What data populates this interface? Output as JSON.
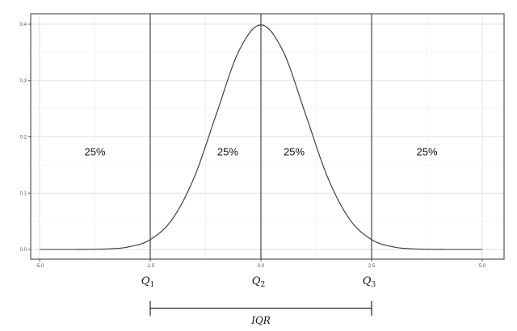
{
  "chart_data": {
    "type": "line",
    "title": "",
    "xlabel": "",
    "ylabel": "",
    "xlim": [
      -5.0,
      5.0
    ],
    "ylim": [
      0.0,
      0.4
    ],
    "x_ticks": [
      "-5.0",
      "-2.5",
      "0.0",
      "2.5",
      "5.0"
    ],
    "y_ticks": [
      "0.0",
      "0.1",
      "0.2",
      "0.3",
      "0.4"
    ],
    "grid": true,
    "curve": {
      "x": [
        -5.0,
        -4.5,
        -4.0,
        -3.5,
        -3.0,
        -2.5,
        -2.0,
        -1.5,
        -1.0,
        -0.5,
        0.0,
        0.5,
        1.0,
        1.5,
        2.0,
        2.5,
        3.0,
        3.5,
        4.0,
        4.5,
        5.0
      ],
      "y": [
        0.0,
        0.0,
        0.0001,
        0.0009,
        0.0044,
        0.0175,
        0.054,
        0.1295,
        0.242,
        0.3521,
        0.3989,
        0.3521,
        0.242,
        0.1295,
        0.054,
        0.0175,
        0.0044,
        0.0009,
        0.0001,
        0.0,
        0.0
      ]
    },
    "vlines": [
      {
        "x": -2.5,
        "label_main": "Q",
        "label_sub": "1"
      },
      {
        "x": 0.0,
        "label_main": "Q",
        "label_sub": "2"
      },
      {
        "x": 2.5,
        "label_main": "Q",
        "label_sub": "3"
      }
    ],
    "regions": [
      {
        "label": "25%",
        "x": -3.75,
        "y": 0.167
      },
      {
        "label": "25%",
        "x": -0.75,
        "y": 0.167
      },
      {
        "label": "25%",
        "x": 0.75,
        "y": 0.167
      },
      {
        "label": "25%",
        "x": 3.75,
        "y": 0.167
      }
    ],
    "bracket": {
      "from": -2.5,
      "to": 2.5,
      "label": "IQR"
    },
    "colors": {
      "curve": "#333333",
      "vline": "#444444",
      "grid": "#ebebeb",
      "border": "#333333"
    }
  }
}
